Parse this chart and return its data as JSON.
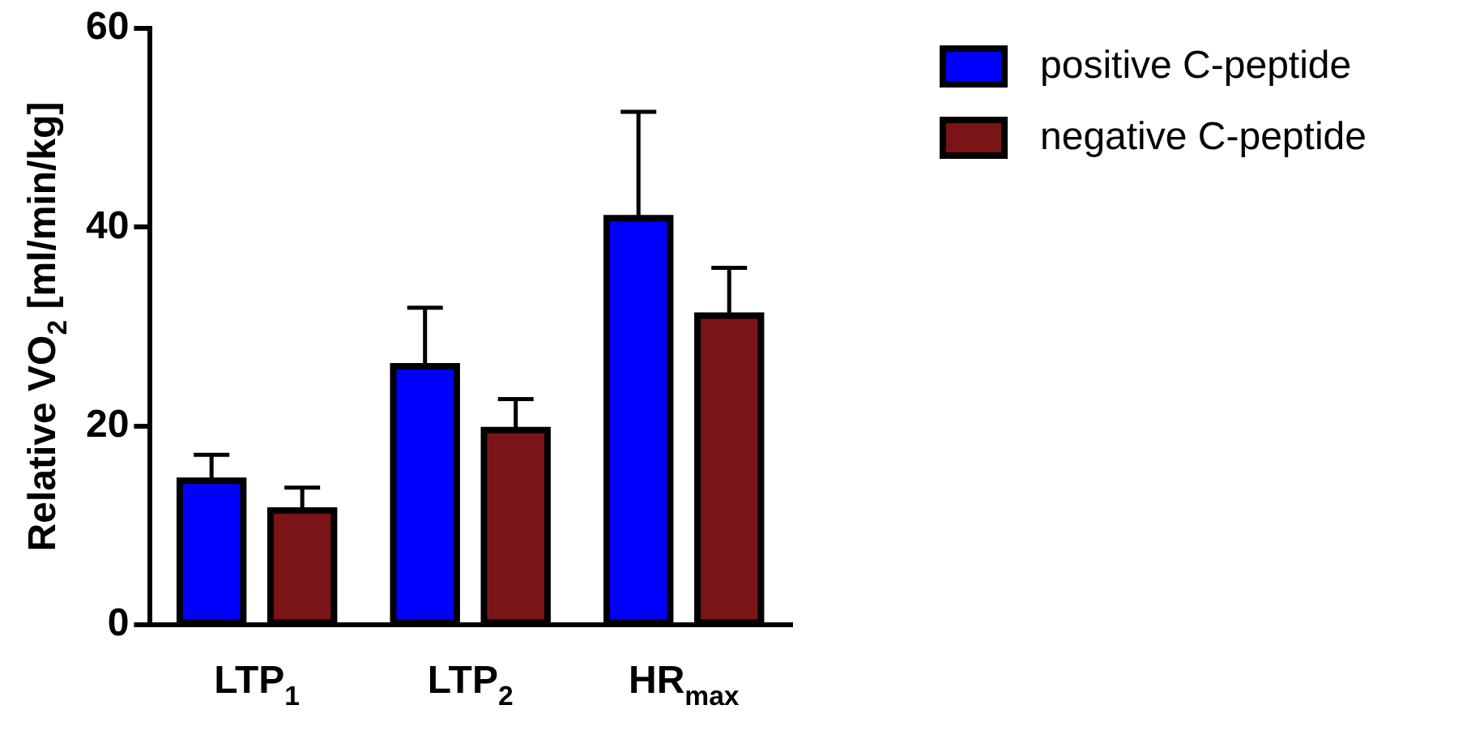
{
  "chart_data": {
    "type": "bar",
    "ylabel": "Relative VO$_{2}$ [ml/min/kg]",
    "categories": [
      "LTP$_{1}$",
      "LTP$_{2}$",
      "HR$_{max}$"
    ],
    "series": [
      {
        "name": "positive C-peptide",
        "color": "#0000ff",
        "values": [
          14.5,
          26.0,
          40.9
        ],
        "errors": [
          [
            14.5,
            17.1
          ],
          [
            26.0,
            31.9
          ],
          [
            40.9,
            51.6
          ]
        ]
      },
      {
        "name": "negative C-peptide",
        "color": "#7b1416",
        "values": [
          11.5,
          19.6,
          31.1
        ],
        "errors": [
          [
            11.5,
            13.8
          ],
          [
            19.6,
            22.7
          ],
          [
            31.1,
            35.9
          ]
        ]
      }
    ],
    "ylim": [
      0,
      60
    ],
    "yticks": [
      0,
      20,
      40,
      60
    ],
    "grid": false,
    "legend": "top right"
  }
}
